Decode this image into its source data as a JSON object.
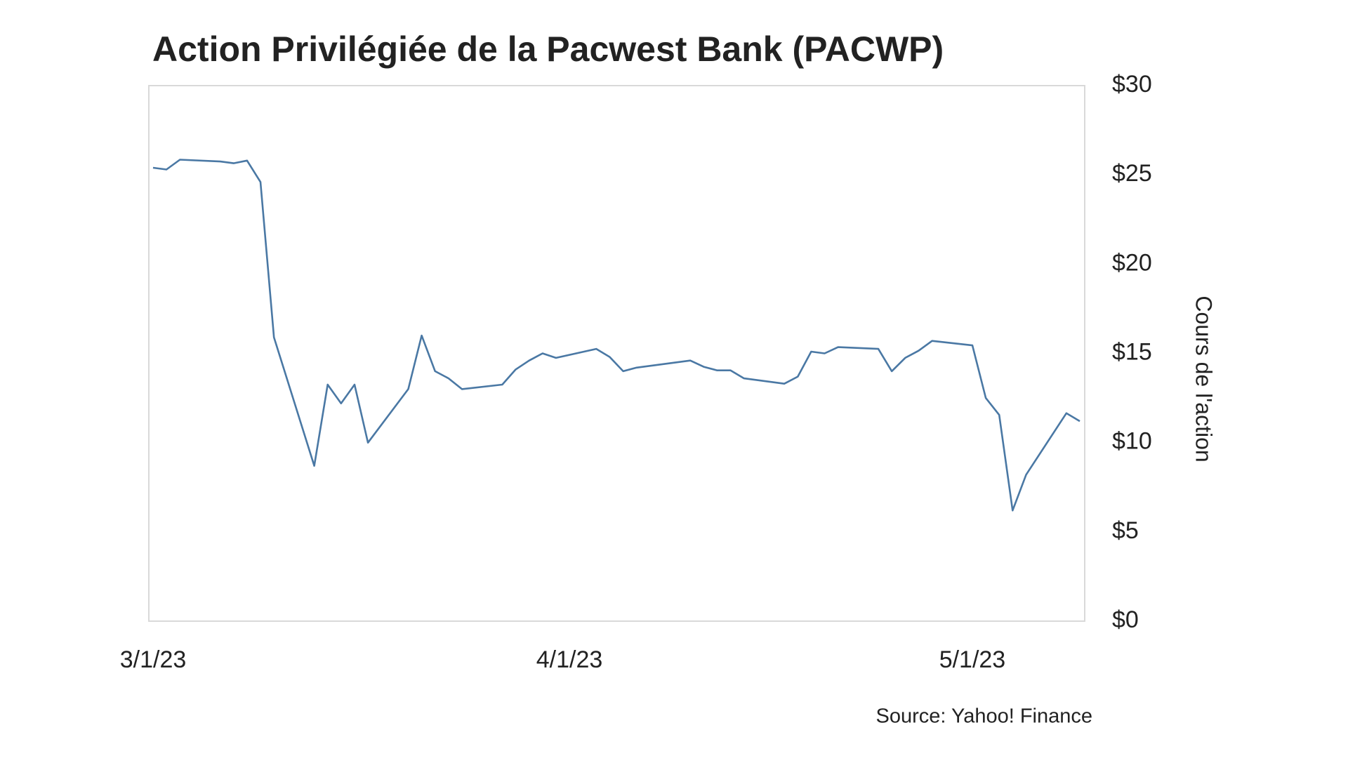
{
  "chart_data": {
    "type": "line",
    "title": "Action Privilégiée de la Pacwest Bank (PACWP)",
    "y_label": "Cours de l'action",
    "source": "Source: Yahoo! Finance",
    "color": "#4a78a4",
    "grid": false,
    "x": [
      "3/1/23",
      "3/2/23",
      "3/3/23",
      "3/6/23",
      "3/7/23",
      "3/8/23",
      "3/9/23",
      "3/10/23",
      "3/13/23",
      "3/14/23",
      "3/15/23",
      "3/16/23",
      "3/17/23",
      "3/20/23",
      "3/21/23",
      "3/22/23",
      "3/23/23",
      "3/24/23",
      "3/27/23",
      "3/28/23",
      "3/29/23",
      "3/30/23",
      "3/31/23",
      "4/3/23",
      "4/4/23",
      "4/5/23",
      "4/6/23",
      "4/10/23",
      "4/11/23",
      "4/12/23",
      "4/13/23",
      "4/14/23",
      "4/17/23",
      "4/18/23",
      "4/19/23",
      "4/20/23",
      "4/21/23",
      "4/24/23",
      "4/25/23",
      "4/26/23",
      "4/27/23",
      "4/28/23",
      "5/1/23",
      "5/2/23",
      "5/3/23",
      "5/4/23",
      "5/5/23",
      "5/8/23",
      "5/9/23"
    ],
    "values": [
      25.4,
      25.3,
      25.85,
      25.75,
      25.65,
      25.8,
      24.6,
      15.9,
      8.7,
      13.25,
      12.2,
      13.25,
      10.0,
      13.0,
      16.0,
      14.0,
      13.6,
      13.0,
      13.25,
      14.1,
      14.6,
      15.0,
      14.75,
      15.25,
      14.8,
      14.0,
      14.2,
      14.6,
      14.25,
      14.05,
      14.05,
      13.6,
      13.3,
      13.7,
      15.1,
      15.0,
      15.35,
      15.25,
      14.0,
      14.75,
      15.15,
      15.7,
      15.45,
      12.5,
      11.55,
      6.2,
      8.2,
      11.65,
      11.2
    ],
    "xlim": [
      "3/1/23",
      "5/9/23"
    ],
    "xticks": [
      "3/1/23",
      "4/1/23",
      "5/1/23"
    ],
    "ylim": [
      0,
      30
    ],
    "yticks": [
      {
        "value": 0,
        "label": "$0"
      },
      {
        "value": 5,
        "label": "$5"
      },
      {
        "value": 10,
        "label": "$10"
      },
      {
        "value": 15,
        "label": "$15"
      },
      {
        "value": 20,
        "label": "$20"
      },
      {
        "value": 25,
        "label": "$25"
      },
      {
        "value": 30,
        "label": "$30"
      }
    ]
  }
}
